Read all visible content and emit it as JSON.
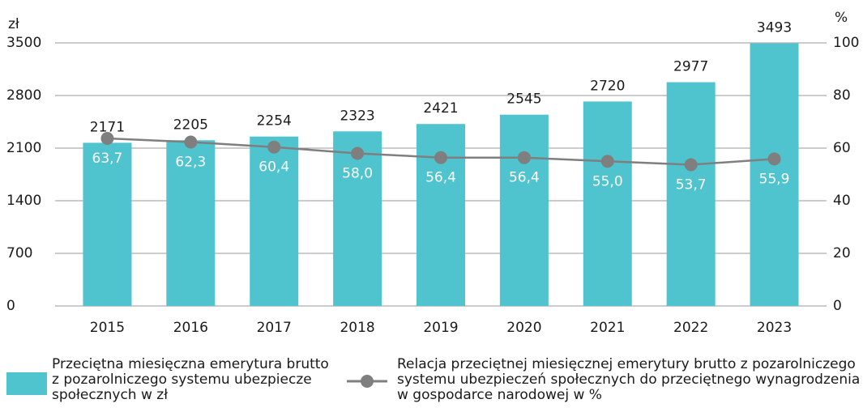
{
  "chart_data": {
    "type": "bar",
    "y_label": "zł",
    "y2_label": "%",
    "categories": [
      "2015",
      "2016",
      "2017",
      "2018",
      "2019",
      "2020",
      "2021",
      "2022",
      "2023"
    ],
    "series": [
      {
        "name": "Przeciętna miesięczna emerytura brutto z pozarolniczego systemu ubezpiecze społecznych w zł",
        "type": "bar",
        "color": "#4fc4cf",
        "values": [
          2171,
          2205,
          2254,
          2323,
          2421,
          2545,
          2720,
          2977,
          3493
        ]
      },
      {
        "name": "Relacja przeciętnej miesięcznej emerytury brutto z pozarolniczego systemu ubezpieczeń społecznych do przeciętnego wynagrodzenia w gospodarce narodowej w %",
        "type": "line",
        "axis": "y2",
        "color": "#7f7f7f",
        "values": [
          63.7,
          62.3,
          60.4,
          58.0,
          56.4,
          56.4,
          55.0,
          53.7,
          55.9
        ],
        "value_labels": [
          "63,7",
          "62,3",
          "60,4",
          "58,0",
          "56,4",
          "56,4",
          "55,0",
          "53,7",
          "55,9"
        ]
      }
    ],
    "ylim": [
      0,
      3500
    ],
    "yticks": [
      0,
      700,
      1400,
      2100,
      2800,
      3500
    ],
    "y2lim": [
      0,
      100
    ],
    "y2ticks": [
      0,
      20,
      40,
      60,
      80,
      100
    ],
    "grid": true,
    "legend": "bottom"
  }
}
